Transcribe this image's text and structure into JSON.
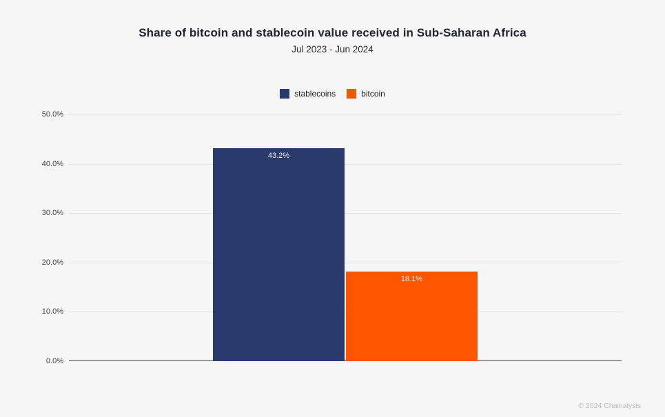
{
  "chart_data": {
    "type": "bar",
    "title": "Share of bitcoin and stablecoin value received in Sub-Saharan Africa",
    "subtitle": "Jul 2023 - Jun 2024",
    "categories": [
      "stablecoins",
      "bitcoin"
    ],
    "values": [
      43.2,
      18.1
    ],
    "value_labels": [
      "43.2%",
      "18.1%"
    ],
    "series_colors": [
      "#293a6b",
      "#ff5500"
    ],
    "xlabel": "",
    "ylabel": "",
    "ylim": [
      0,
      50
    ],
    "yticks": [
      0,
      10,
      20,
      30,
      40,
      50
    ],
    "ytick_labels": [
      "0.0%",
      "10.0%",
      "20.0%",
      "30.0%",
      "40.0%",
      "50.0%"
    ],
    "grid": true,
    "legend_position": "top",
    "legend": [
      {
        "label": "stablecoins",
        "color": "#293a6b"
      },
      {
        "label": "bitcoin",
        "color": "#ff5500"
      }
    ]
  },
  "footer": {
    "text": "© 2024 Chainalysis"
  },
  "style": {
    "background": "#f6f6f6",
    "gridline_color": "#e3e3e3",
    "axis_color": "#979797"
  }
}
